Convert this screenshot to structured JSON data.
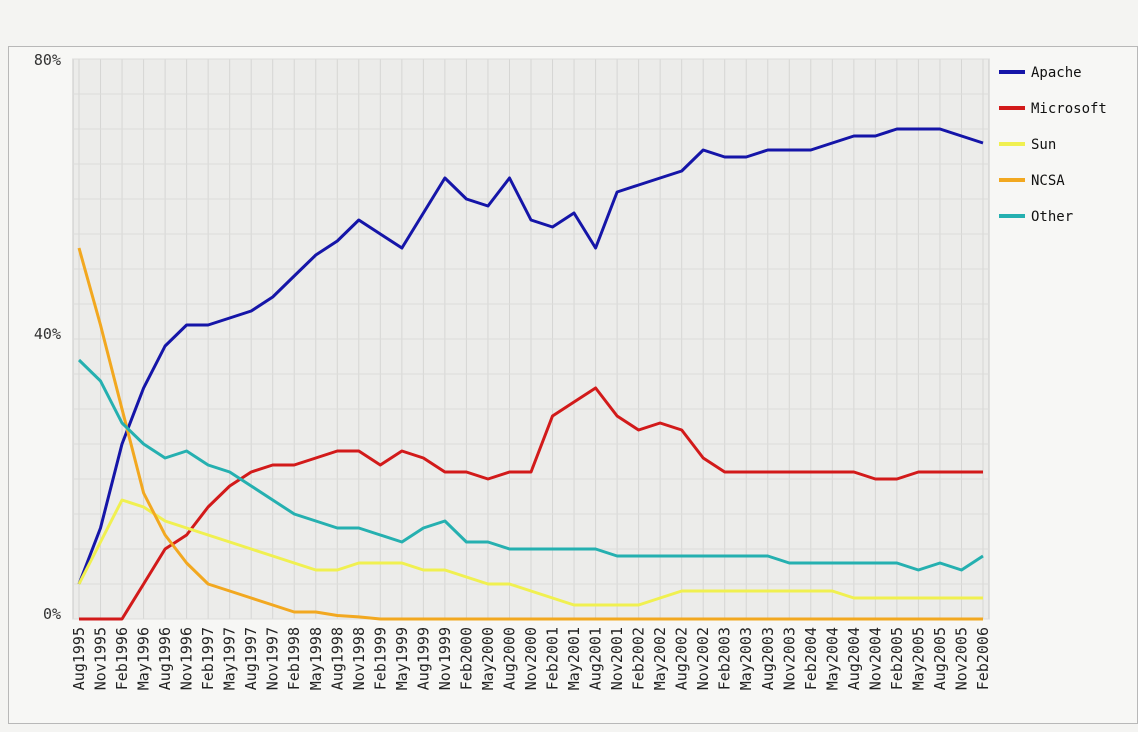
{
  "chart_data": {
    "type": "line",
    "title": "",
    "xlabel": "",
    "ylabel": "",
    "ylim": [
      0,
      80
    ],
    "y_ticks": [
      "80%",
      "40%",
      "0%"
    ],
    "grid": true,
    "legend_position": "top-right",
    "categories": [
      "Aug1995",
      "Nov1995",
      "Feb1996",
      "May1996",
      "Aug1996",
      "Nov1996",
      "Feb1997",
      "May1997",
      "Aug1997",
      "Nov1997",
      "Feb1998",
      "May1998",
      "Aug1998",
      "Nov1998",
      "Feb1999",
      "May1999",
      "Aug1999",
      "Nov1999",
      "Feb2000",
      "May2000",
      "Aug2000",
      "Nov2000",
      "Feb2001",
      "May2001",
      "Aug2001",
      "Nov2001",
      "Feb2002",
      "May2002",
      "Aug2002",
      "Nov2002",
      "Feb2003",
      "May2003",
      "Aug2003",
      "Nov2003",
      "Feb2004",
      "May2004",
      "Aug2004",
      "Nov2004",
      "Feb2005",
      "May2005",
      "Aug2005",
      "Nov2005",
      "Feb2006"
    ],
    "series": [
      {
        "name": "Apache",
        "color": "#1515a8",
        "values": [
          5,
          13,
          25,
          33,
          39,
          42,
          42,
          43,
          44,
          46,
          49,
          52,
          54,
          57,
          55,
          53,
          58,
          63,
          60,
          59,
          63,
          57,
          56,
          58,
          53,
          61,
          62,
          63,
          64,
          67,
          66,
          66,
          67,
          67,
          67,
          68,
          69,
          69,
          70,
          70,
          70,
          69,
          68
        ]
      },
      {
        "name": "Microsoft",
        "color": "#d21a1a",
        "values": [
          0,
          0,
          0,
          5,
          10,
          12,
          16,
          19,
          21,
          22,
          22,
          23,
          24,
          24,
          22,
          24,
          23,
          21,
          21,
          20,
          21,
          21,
          29,
          31,
          33,
          29,
          27,
          28,
          27,
          23,
          21,
          21,
          21,
          21,
          21,
          21,
          21,
          20,
          20,
          21,
          21,
          21,
          21
        ]
      },
      {
        "name": "Sun",
        "color": "#f0f050",
        "values": [
          5,
          11,
          17,
          16,
          14,
          13,
          12,
          11,
          10,
          9,
          8,
          7,
          7,
          8,
          8,
          8,
          7,
          7,
          6,
          5,
          5,
          4,
          3,
          2,
          2,
          2,
          2,
          3,
          4,
          4,
          4,
          4,
          4,
          4,
          4,
          4,
          3,
          3,
          3,
          3,
          3,
          3,
          3
        ]
      },
      {
        "name": "NCSA",
        "color": "#f2a820",
        "values": [
          53,
          42,
          30,
          18,
          12,
          8,
          5,
          4,
          3,
          2,
          1,
          1,
          0.5,
          0.3,
          0,
          0,
          0,
          0,
          0,
          0,
          0,
          0,
          0,
          0,
          0,
          0,
          0,
          0,
          0,
          0,
          0,
          0,
          0,
          0,
          0,
          0,
          0,
          0,
          0,
          0,
          0,
          0,
          0
        ]
      },
      {
        "name": "Other",
        "color": "#25b0b0",
        "values": [
          37,
          34,
          28,
          25,
          23,
          24,
          22,
          21,
          19,
          17,
          15,
          14,
          13,
          13,
          12,
          11,
          13,
          14,
          11,
          11,
          10,
          10,
          10,
          10,
          10,
          9,
          9,
          9,
          9,
          9,
          9,
          9,
          9,
          8,
          8,
          8,
          8,
          8,
          8,
          7,
          8,
          7,
          9
        ]
      }
    ]
  }
}
